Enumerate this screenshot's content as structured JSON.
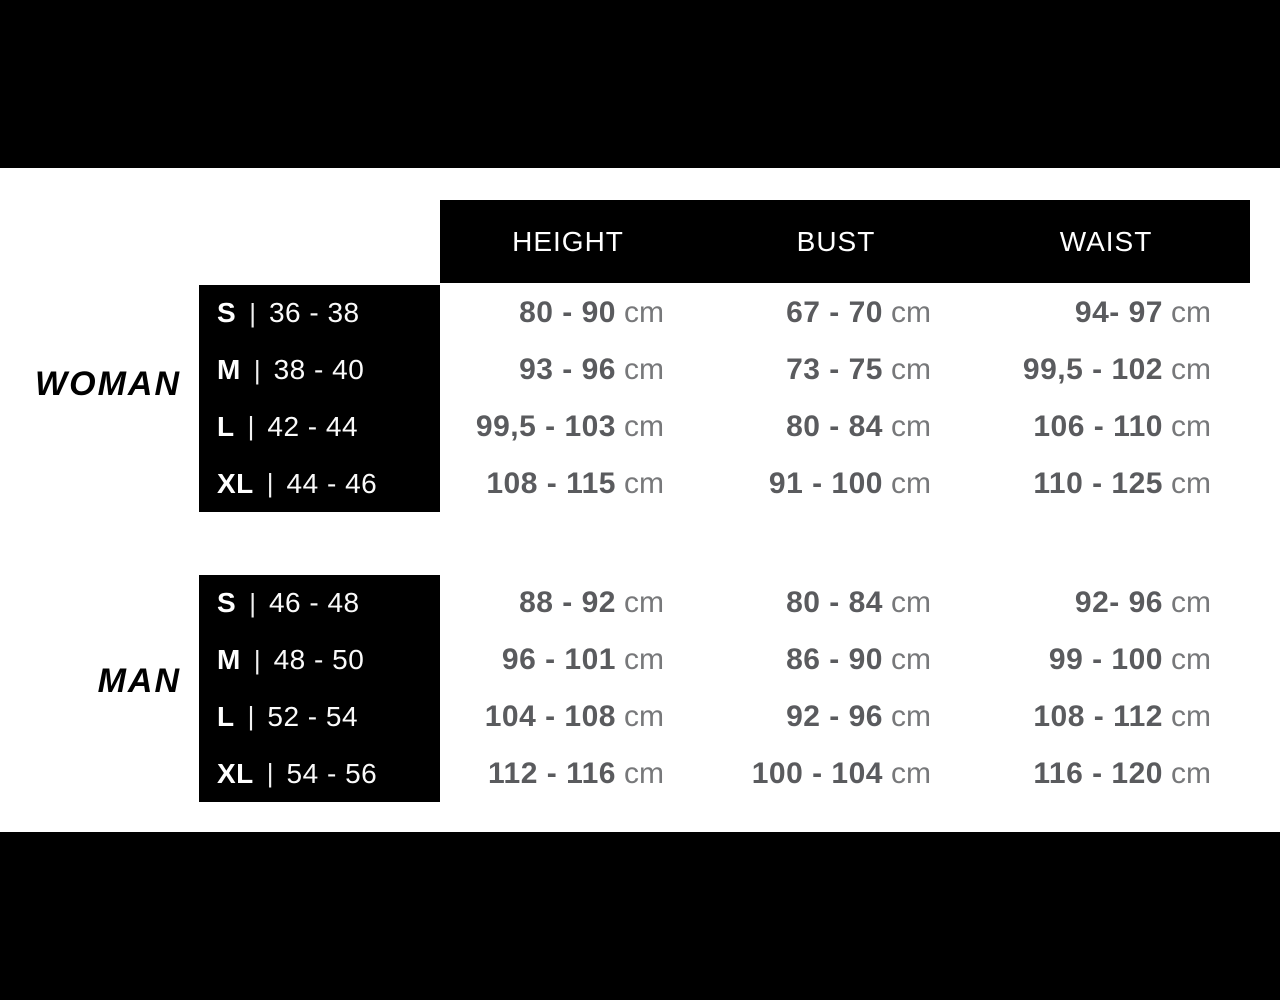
{
  "chart_data": {
    "type": "table",
    "unit": "cm",
    "size_separator": "|",
    "columns": [
      "HEIGHT",
      "BUST",
      "WAIST"
    ],
    "sections": [
      {
        "label": "WOMAN",
        "rows": [
          {
            "size": "S",
            "size_range": "36 - 38",
            "height": "80 - 90",
            "bust": "67 - 70",
            "waist": "94- 97"
          },
          {
            "size": "M",
            "size_range": "38 - 40",
            "height": "93 - 96",
            "bust": "73 - 75",
            "waist": "99,5 - 102"
          },
          {
            "size": "L",
            "size_range": "42 - 44",
            "height": "99,5 - 103",
            "bust": "80 - 84",
            "waist": "106 - 110"
          },
          {
            "size": "XL",
            "size_range": "44 - 46",
            "height": "108 - 115",
            "bust": "91 - 100",
            "waist": "110 - 125"
          }
        ]
      },
      {
        "label": "MAN",
        "rows": [
          {
            "size": "S",
            "size_range": "46 - 48",
            "height": "88 - 92",
            "bust": "80 - 84",
            "waist": "92- 96"
          },
          {
            "size": "M",
            "size_range": "48 - 50",
            "height": "96 - 101",
            "bust": "86 - 90",
            "waist": "99 - 100"
          },
          {
            "size": "L",
            "size_range": "52 - 54",
            "height": "104 - 108",
            "bust": "92 - 96",
            "waist": "108 - 112"
          },
          {
            "size": "XL",
            "size_range": "54 - 56",
            "height": "112 - 116",
            "bust": "100 - 104",
            "waist": "116 - 120"
          }
        ]
      }
    ]
  },
  "colors": {
    "background": "#ffffff",
    "band": "#000000",
    "header_text": "#ffffff",
    "size_text": "#ffffff",
    "value_text": "#5a5b5e",
    "unit_text": "#77787a",
    "gender_label_text": "#000000"
  }
}
